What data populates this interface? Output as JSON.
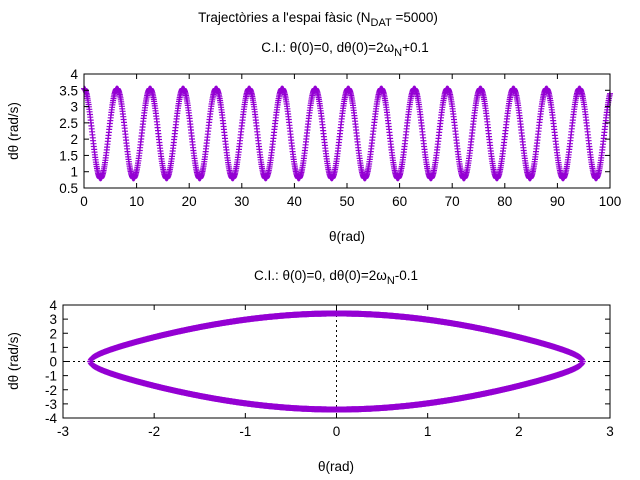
{
  "figure": {
    "suptitle_main": "Trajectòries a l'espai fàsic (N",
    "suptitle_sub": "DAT",
    "suptitle_end": " =5000)"
  },
  "chart_data": [
    {
      "type": "scatter",
      "title_main": "C.I.: θ(0)=0, dθ(0)=2ω",
      "title_sub": "N",
      "title_end": "+0.1",
      "xlabel": "θ(rad)",
      "ylabel": "dθ (rad/s)",
      "xlim": [
        0,
        100
      ],
      "ylim": [
        0.5,
        4
      ],
      "xticks": [
        "0",
        "10",
        "20",
        "30",
        "40",
        "50",
        "60",
        "70",
        "80",
        "90",
        "100"
      ],
      "xtick_values": [
        0,
        10,
        20,
        30,
        40,
        50,
        60,
        70,
        80,
        90,
        100
      ],
      "yticks": [
        "0.5",
        "1",
        "1.5",
        "2",
        "2.5",
        "3",
        "3.5",
        "4"
      ],
      "ytick_values": [
        0.5,
        1,
        1.5,
        2,
        2.5,
        3,
        3.5,
        4
      ],
      "marker": "+",
      "color": "#9400d3",
      "grid": false,
      "zero_axes": false,
      "x_range": [
        0,
        100
      ],
      "y_max": 3.55,
      "y_min": 0.8,
      "period": 6.28
    },
    {
      "type": "scatter",
      "title_main": "C.I.: θ(0)=0, dθ(0)=2ω",
      "title_sub": "N",
      "title_end": "-0.1",
      "xlabel": "θ(rad)",
      "ylabel": "dθ (rad/s)",
      "xlim": [
        -3,
        3
      ],
      "ylim": [
        -4,
        4
      ],
      "xticks": [
        "-3",
        "-2",
        "-1",
        "0",
        "1",
        "2",
        "3"
      ],
      "xtick_values": [
        -3,
        -2,
        -1,
        0,
        1,
        2,
        3
      ],
      "yticks": [
        "-4",
        "-3",
        "-2",
        "-1",
        "0",
        "1",
        "2",
        "3",
        "4"
      ],
      "ytick_values": [
        -4,
        -3,
        -2,
        -1,
        0,
        1,
        2,
        3,
        4
      ],
      "marker": "+",
      "color": "#9400d3",
      "grid": false,
      "zero_axes": true,
      "theta_max": 2.7,
      "dtheta_max": 3.4
    }
  ]
}
